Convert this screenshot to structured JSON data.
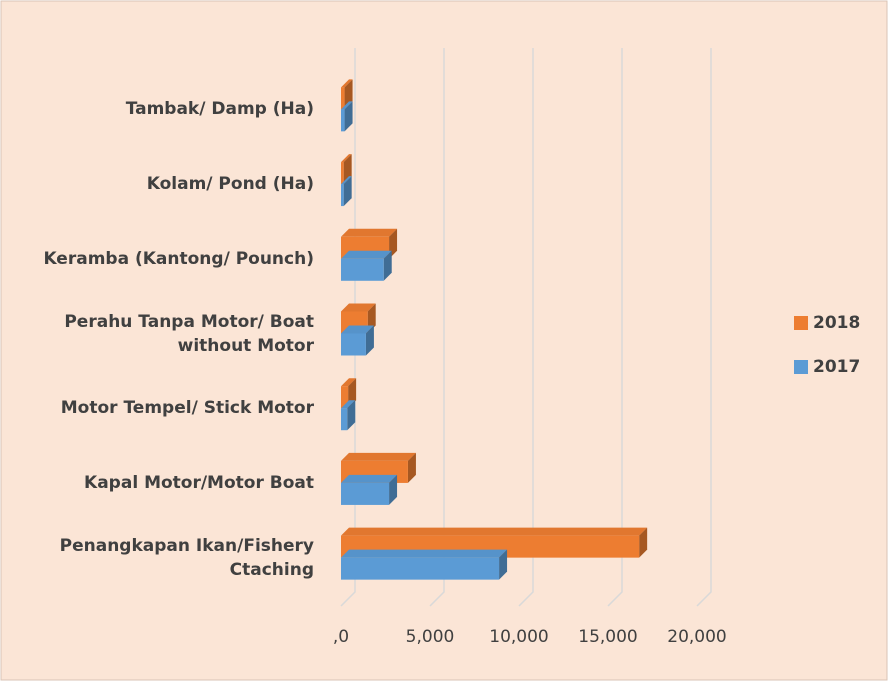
{
  "chart_data": {
    "type": "bar3d_horizontal",
    "categories": [
      "Tambak/ Damp (Ha)",
      "Kolam/ Pond  (Ha)",
      "Keramba (Kantong/ Pounch)",
      "Perahu  Tanpa  Motor/ Boat\nwithout Motor",
      "Motor  Tempel/  Stick Motor",
      "Kapal  Motor/Motor Boat",
      "Penangkapan Ikan/Fishery\nCtaching"
    ],
    "series": [
      {
        "name": "2018",
        "color": "#ed7d31",
        "values": [
          200,
          150,
          2700,
          1500,
          400,
          3760,
          16750
        ]
      },
      {
        "name": "2017",
        "color": "#5b9bd5",
        "values": [
          200,
          150,
          2400,
          1400,
          350,
          2700,
          8880
        ]
      }
    ],
    "xlim": [
      0,
      20000
    ],
    "xticks": [
      {
        "value": 0,
        "label": ",0"
      },
      {
        "value": 5000,
        "label": "5,000"
      },
      {
        "value": 10000,
        "label": "10,000"
      },
      {
        "value": 15000,
        "label": "15,000"
      },
      {
        "value": 20000,
        "label": "20,000"
      }
    ],
    "grid": true,
    "legend": "right"
  }
}
